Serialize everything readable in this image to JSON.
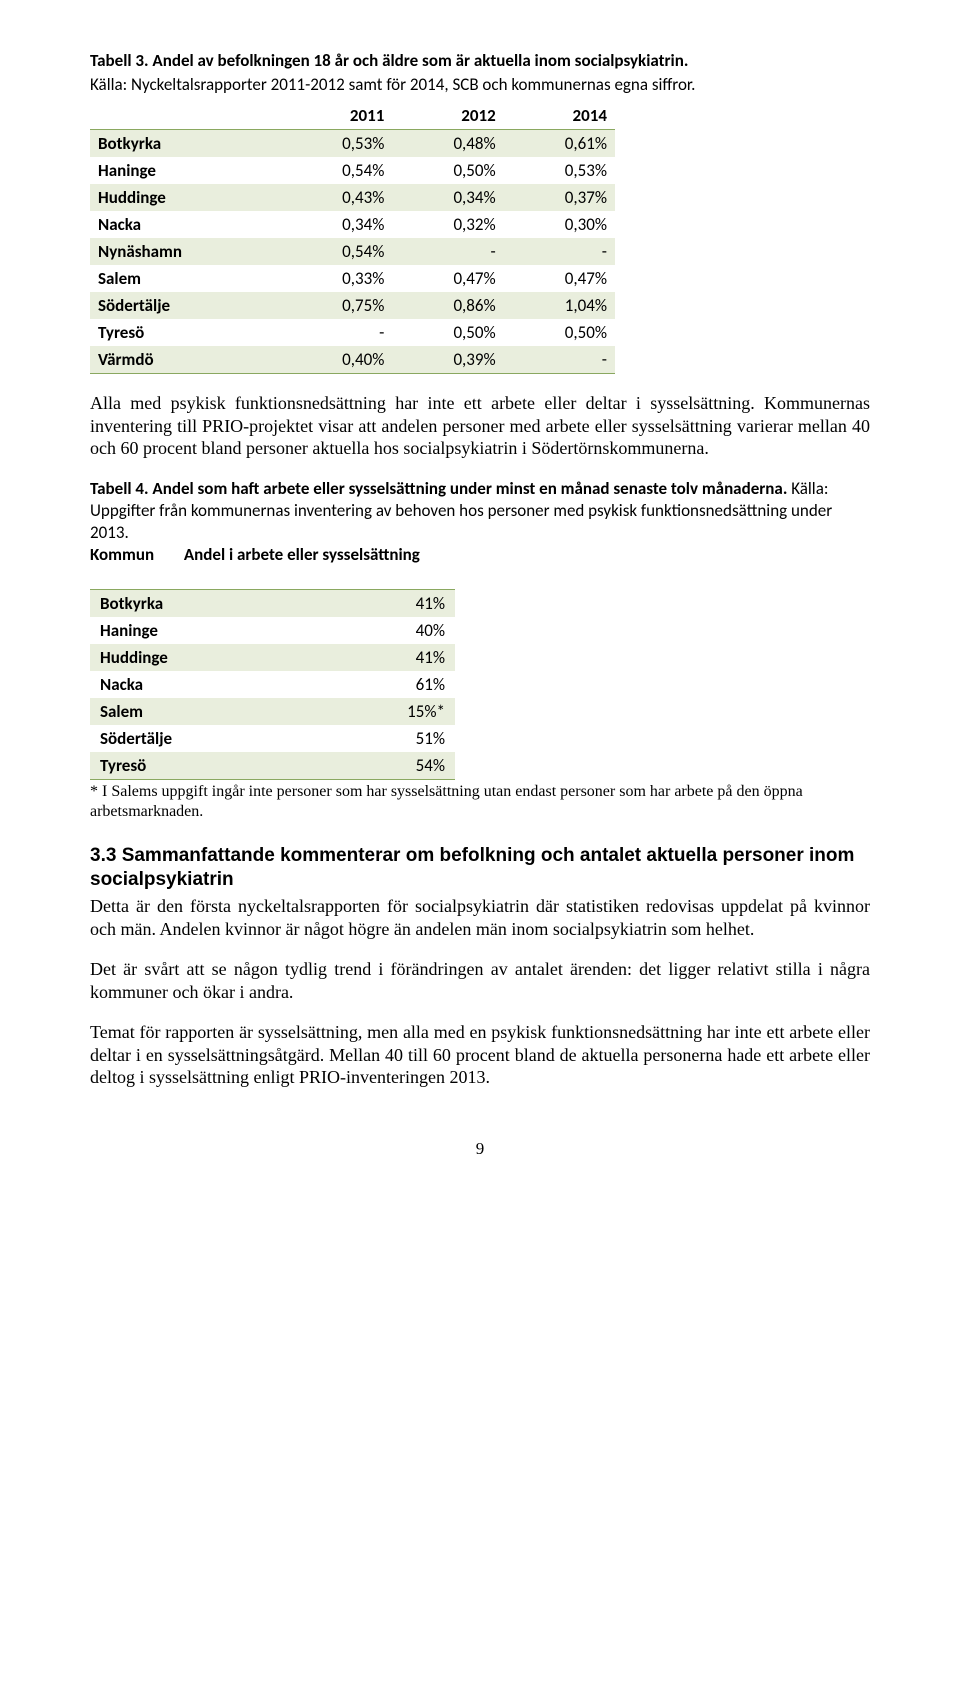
{
  "table3": {
    "title": "Tabell 3. Andel av befolkningen 18 år och äldre som är aktuella inom socialpsykiatrin.",
    "subtitle": "Källa: Nyckeltalsrapporter 2011-2012 samt för 2014, SCB och kommunernas egna siffror.",
    "columns": [
      "",
      "2011",
      "2012",
      "2014"
    ],
    "rows": [
      [
        "Botkyrka",
        "0,53%",
        "0,48%",
        "0,61%"
      ],
      [
        "Haninge",
        "0,54%",
        "0,50%",
        "0,53%"
      ],
      [
        "Huddinge",
        "0,43%",
        "0,34%",
        "0,37%"
      ],
      [
        "Nacka",
        "0,34%",
        "0,32%",
        "0,30%"
      ],
      [
        "Nynäshamn",
        "0,54%",
        "-",
        "-"
      ],
      [
        "Salem",
        "0,33%",
        "0,47%",
        "0,47%"
      ],
      [
        "Södertälje",
        "0,75%",
        "0,86%",
        "1,04%"
      ],
      [
        "Tyresö",
        "-",
        "0,50%",
        "0,50%"
      ],
      [
        "Värmdö",
        "0,40%",
        "0,39%",
        "-"
      ]
    ],
    "stripe_color": "#e9eedd",
    "border_color": "#8aa860"
  },
  "para1": "Alla med psykisk funktionsnedsättning har inte ett arbete eller deltar i sysselsättning. Kommunernas inventering till PRIO-projektet visar att andelen personer med arbete eller sysselsättning varierar mellan 40 och 60 procent bland personer aktuella hos socialpsykiatrin i Södertörnskommunerna.",
  "table4": {
    "title_bold": "Tabell 4. Andel som haft arbete eller sysselsättning under minst en månad senaste tolv månaderna.",
    "title_rest": " Källa: Uppgifter från kommunernas inventering av behoven hos personer med psykisk funktionsnedsättning under 2013.",
    "header_kommun": "Kommun",
    "header_andel": "Andel i arbete eller sysselsättning",
    "rows": [
      [
        "Botkyrka",
        "41%"
      ],
      [
        "Haninge",
        "40%"
      ],
      [
        "Huddinge",
        "41%"
      ],
      [
        "Nacka",
        "61%"
      ],
      [
        "Salem",
        "15%*"
      ],
      [
        "Södertälje",
        "51%"
      ],
      [
        "Tyresö",
        "54%"
      ]
    ],
    "footnote": "* I Salems uppgift ingår inte personer som har sysselsättning utan endast personer som har arbete på den öppna arbetsmarknaden."
  },
  "section": {
    "heading": "3.3 Sammanfattande kommenterar om befolkning och antalet aktuella personer inom socialpsykiatrin",
    "p1": "Detta är den första nyckeltalsrapporten för socialpsykiatrin där statistiken redovisas uppdelat på kvinnor och män. Andelen kvinnor är något högre än andelen män inom socialpsykiatrin som helhet.",
    "p2": "Det är svårt att se någon tydlig trend i förändringen av antalet ärenden: det ligger relativt stilla i några kommuner och ökar i andra.",
    "p3": "Temat för rapporten är sysselsättning, men alla med en psykisk funktionsnedsättning har inte ett arbete eller deltar i en sysselsättningsåtgärd. Mellan 40 till 60 procent bland de aktuella personerna hade ett arbete eller deltog i sysselsättning enligt PRIO-inventeringen 2013."
  },
  "pagenum": "9"
}
